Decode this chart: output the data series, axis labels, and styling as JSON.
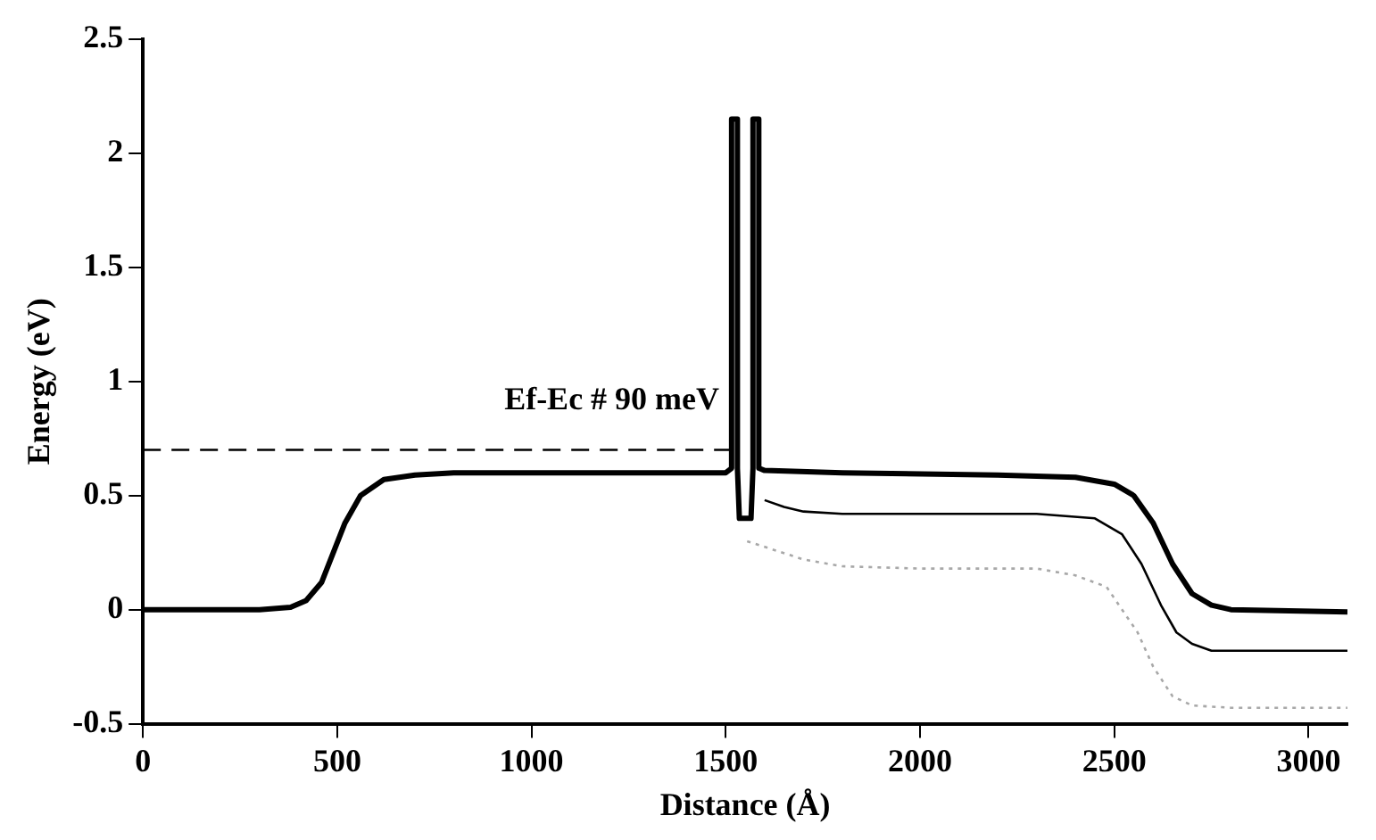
{
  "chart_data": {
    "type": "line",
    "xlabel": "Distance (Å)",
    "ylabel": "Energy (eV)",
    "annotations": [
      "Ef-Ec # 90 meV"
    ],
    "xlim": [
      0,
      3100
    ],
    "xticks": [
      0,
      500,
      1000,
      1500,
      2000,
      2500,
      3000
    ],
    "ylim": [
      -0.5,
      2.5
    ],
    "yticks": [
      -0.5,
      0,
      0.5,
      1,
      1.5,
      2,
      2.5
    ],
    "grid": false,
    "legend": false,
    "marker": "none",
    "series": [
      {
        "color": "#000000",
        "line_style": "solid",
        "x": [
          0,
          300,
          380,
          420,
          460,
          490,
          520,
          560,
          620,
          700,
          800,
          1000,
          1500,
          1515,
          1515,
          1530,
          1530,
          1535,
          1565,
          1570,
          1570,
          1585,
          1585,
          1600,
          1800,
          2200,
          2400,
          2500,
          2550,
          2600,
          2650,
          2700,
          2750,
          2800,
          3100
        ],
        "values": [
          0,
          0,
          0.01,
          0.04,
          0.12,
          0.25,
          0.38,
          0.5,
          0.57,
          0.59,
          0.6,
          0.6,
          0.6,
          0.62,
          2.15,
          2.15,
          0.62,
          0.4,
          0.4,
          0.62,
          2.15,
          2.15,
          0.62,
          0.61,
          0.6,
          0.59,
          0.58,
          0.55,
          0.5,
          0.38,
          0.2,
          0.07,
          0.02,
          0,
          -0.01
        ]
      },
      {
        "color": "#000000",
        "line_style": "solid",
        "x": [
          1600,
          1650,
          1700,
          1800,
          2000,
          2300,
          2450,
          2520,
          2570,
          2620,
          2660,
          2700,
          2750,
          2800,
          3100
        ],
        "values": [
          0.48,
          0.45,
          0.43,
          0.42,
          0.42,
          0.42,
          0.4,
          0.33,
          0.2,
          0.02,
          -0.1,
          -0.15,
          -0.18,
          -0.18,
          -0.18
        ]
      },
      {
        "color": "#a8a8a8",
        "line_style": "dotted",
        "x": [
          1555,
          1700,
          1800,
          2000,
          2300,
          2400,
          2480,
          2560,
          2600,
          2650,
          2700,
          2800,
          3100
        ],
        "values": [
          0.3,
          0.22,
          0.19,
          0.18,
          0.18,
          0.15,
          0.1,
          -0.1,
          -0.25,
          -0.38,
          -0.42,
          -0.43,
          -0.43
        ]
      },
      {
        "color": "#000000",
        "line_style": "dashed",
        "x": [
          0,
          1510
        ],
        "values": [
          0.7,
          0.7
        ]
      }
    ]
  }
}
